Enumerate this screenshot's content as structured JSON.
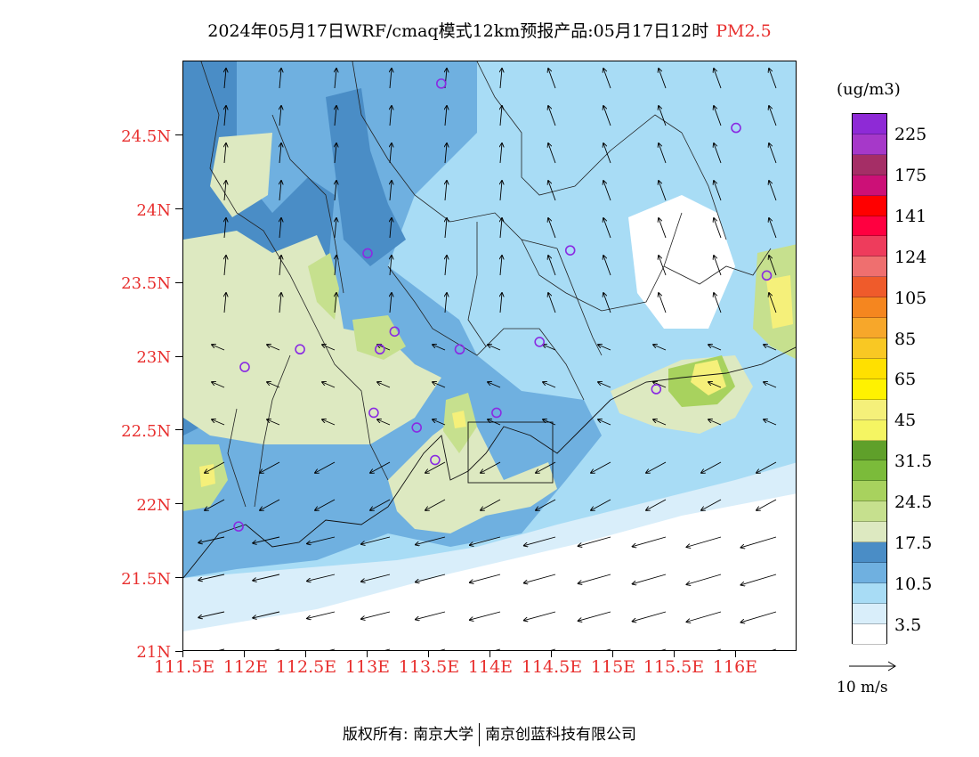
{
  "title": {
    "main": "2024年05月17日WRF/cmaq模式12km预报产品:05月17日12时",
    "variable": "PM2.5"
  },
  "map": {
    "lat_labels": [
      "24.5N",
      "24N",
      "23.5N",
      "23N",
      "22.5N",
      "22N",
      "21.5N",
      "21N"
    ],
    "lon_labels": [
      "111.5E",
      "112E",
      "112.5E",
      "113E",
      "113.5E",
      "114E",
      "114.5E",
      "115E",
      "115.5E",
      "116E"
    ],
    "extent": {
      "lon_min": 111.5,
      "lon_max": 116.5,
      "lat_min": 21.0,
      "lat_max": 25.0
    },
    "station_marker_color": "#8a2be2",
    "stations_lonlat": [
      [
        113.6,
        24.85
      ],
      [
        116.0,
        24.55
      ],
      [
        114.65,
        23.72
      ],
      [
        113.0,
        23.7
      ],
      [
        116.25,
        23.55
      ],
      [
        113.22,
        23.17
      ],
      [
        112.45,
        23.05
      ],
      [
        113.1,
        23.05
      ],
      [
        113.75,
        23.05
      ],
      [
        114.4,
        23.1
      ],
      [
        112.0,
        22.93
      ],
      [
        115.35,
        22.78
      ],
      [
        113.05,
        22.62
      ],
      [
        114.05,
        22.62
      ],
      [
        113.4,
        22.52
      ],
      [
        113.55,
        22.3
      ],
      [
        111.95,
        21.85
      ]
    ]
  },
  "colorbar": {
    "unit": "(ug/m3)",
    "labels": [
      "225",
      "175",
      "141",
      "124",
      "105",
      "85",
      "65",
      "45",
      "31.5",
      "24.5",
      "17.5",
      "10.5",
      "3.5"
    ],
    "colors": [
      "#ffffff",
      "#d9eefa",
      "#a8dcf5",
      "#6fb0e0",
      "#4a8dc6",
      "#dde9c1",
      "#c6e08e",
      "#a8d25e",
      "#7bbb3a",
      "#5fa02a",
      "#f5f562",
      "#f5f07a",
      "#fff200",
      "#ffe000",
      "#f9c823",
      "#f7a72a",
      "#f5861f",
      "#ef5b2b",
      "#ef6f6f",
      "#ee3c5c",
      "#ff0040",
      "#ff0000",
      "#cc1077",
      "#a52e66",
      "#a638c9",
      "#8e2ad6"
    ]
  },
  "wind": {
    "reference_label": "10 m/s"
  },
  "copyright": {
    "label": "版权所有:",
    "org1": "南京大学",
    "org2": "南京创蓝科技有限公司"
  }
}
